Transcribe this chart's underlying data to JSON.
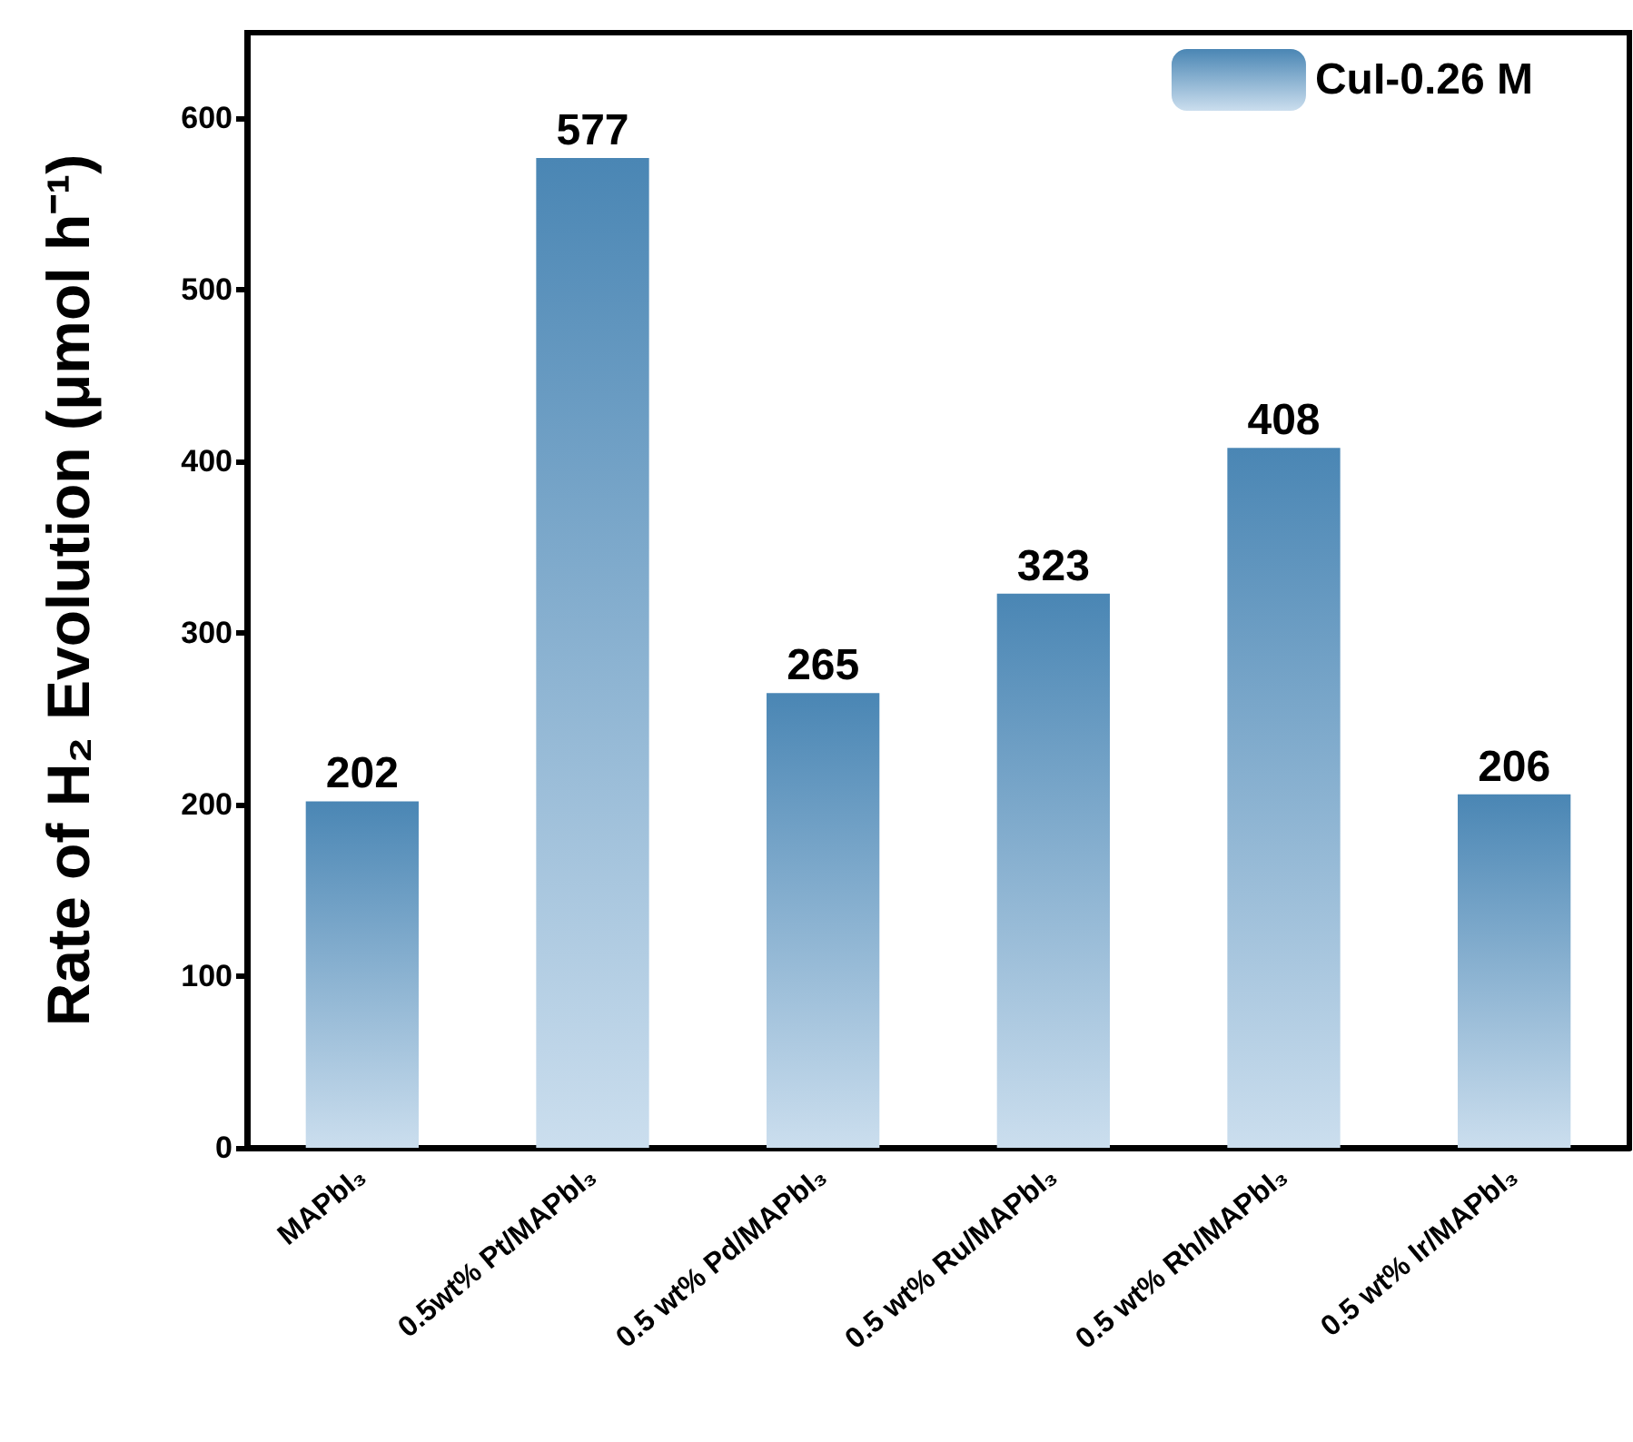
{
  "chart_data": {
    "type": "bar",
    "ylabel": "Rate of H₂ Evolution (μmol h⁻¹)",
    "categories": [
      "MAPbI₃",
      "0.5wt% Pt/MAPbI₃",
      "0.5 wt% Pd/MAPbI₃",
      "0.5 wt% Ru/MAPbI₃",
      "0.5 wt% Rh/MAPbI₃",
      "0.5 wt% Ir/MAPbI₃"
    ],
    "series": [
      {
        "name": "CuI-0.26 M",
        "color": "#4a86b4",
        "values": [
          202,
          577,
          265,
          323,
          408,
          206
        ]
      }
    ],
    "data_labels": true,
    "ylim": [
      0,
      650
    ],
    "yticks": [
      0,
      100,
      200,
      300,
      400,
      500,
      600
    ],
    "grid": false,
    "legend": "top right"
  }
}
